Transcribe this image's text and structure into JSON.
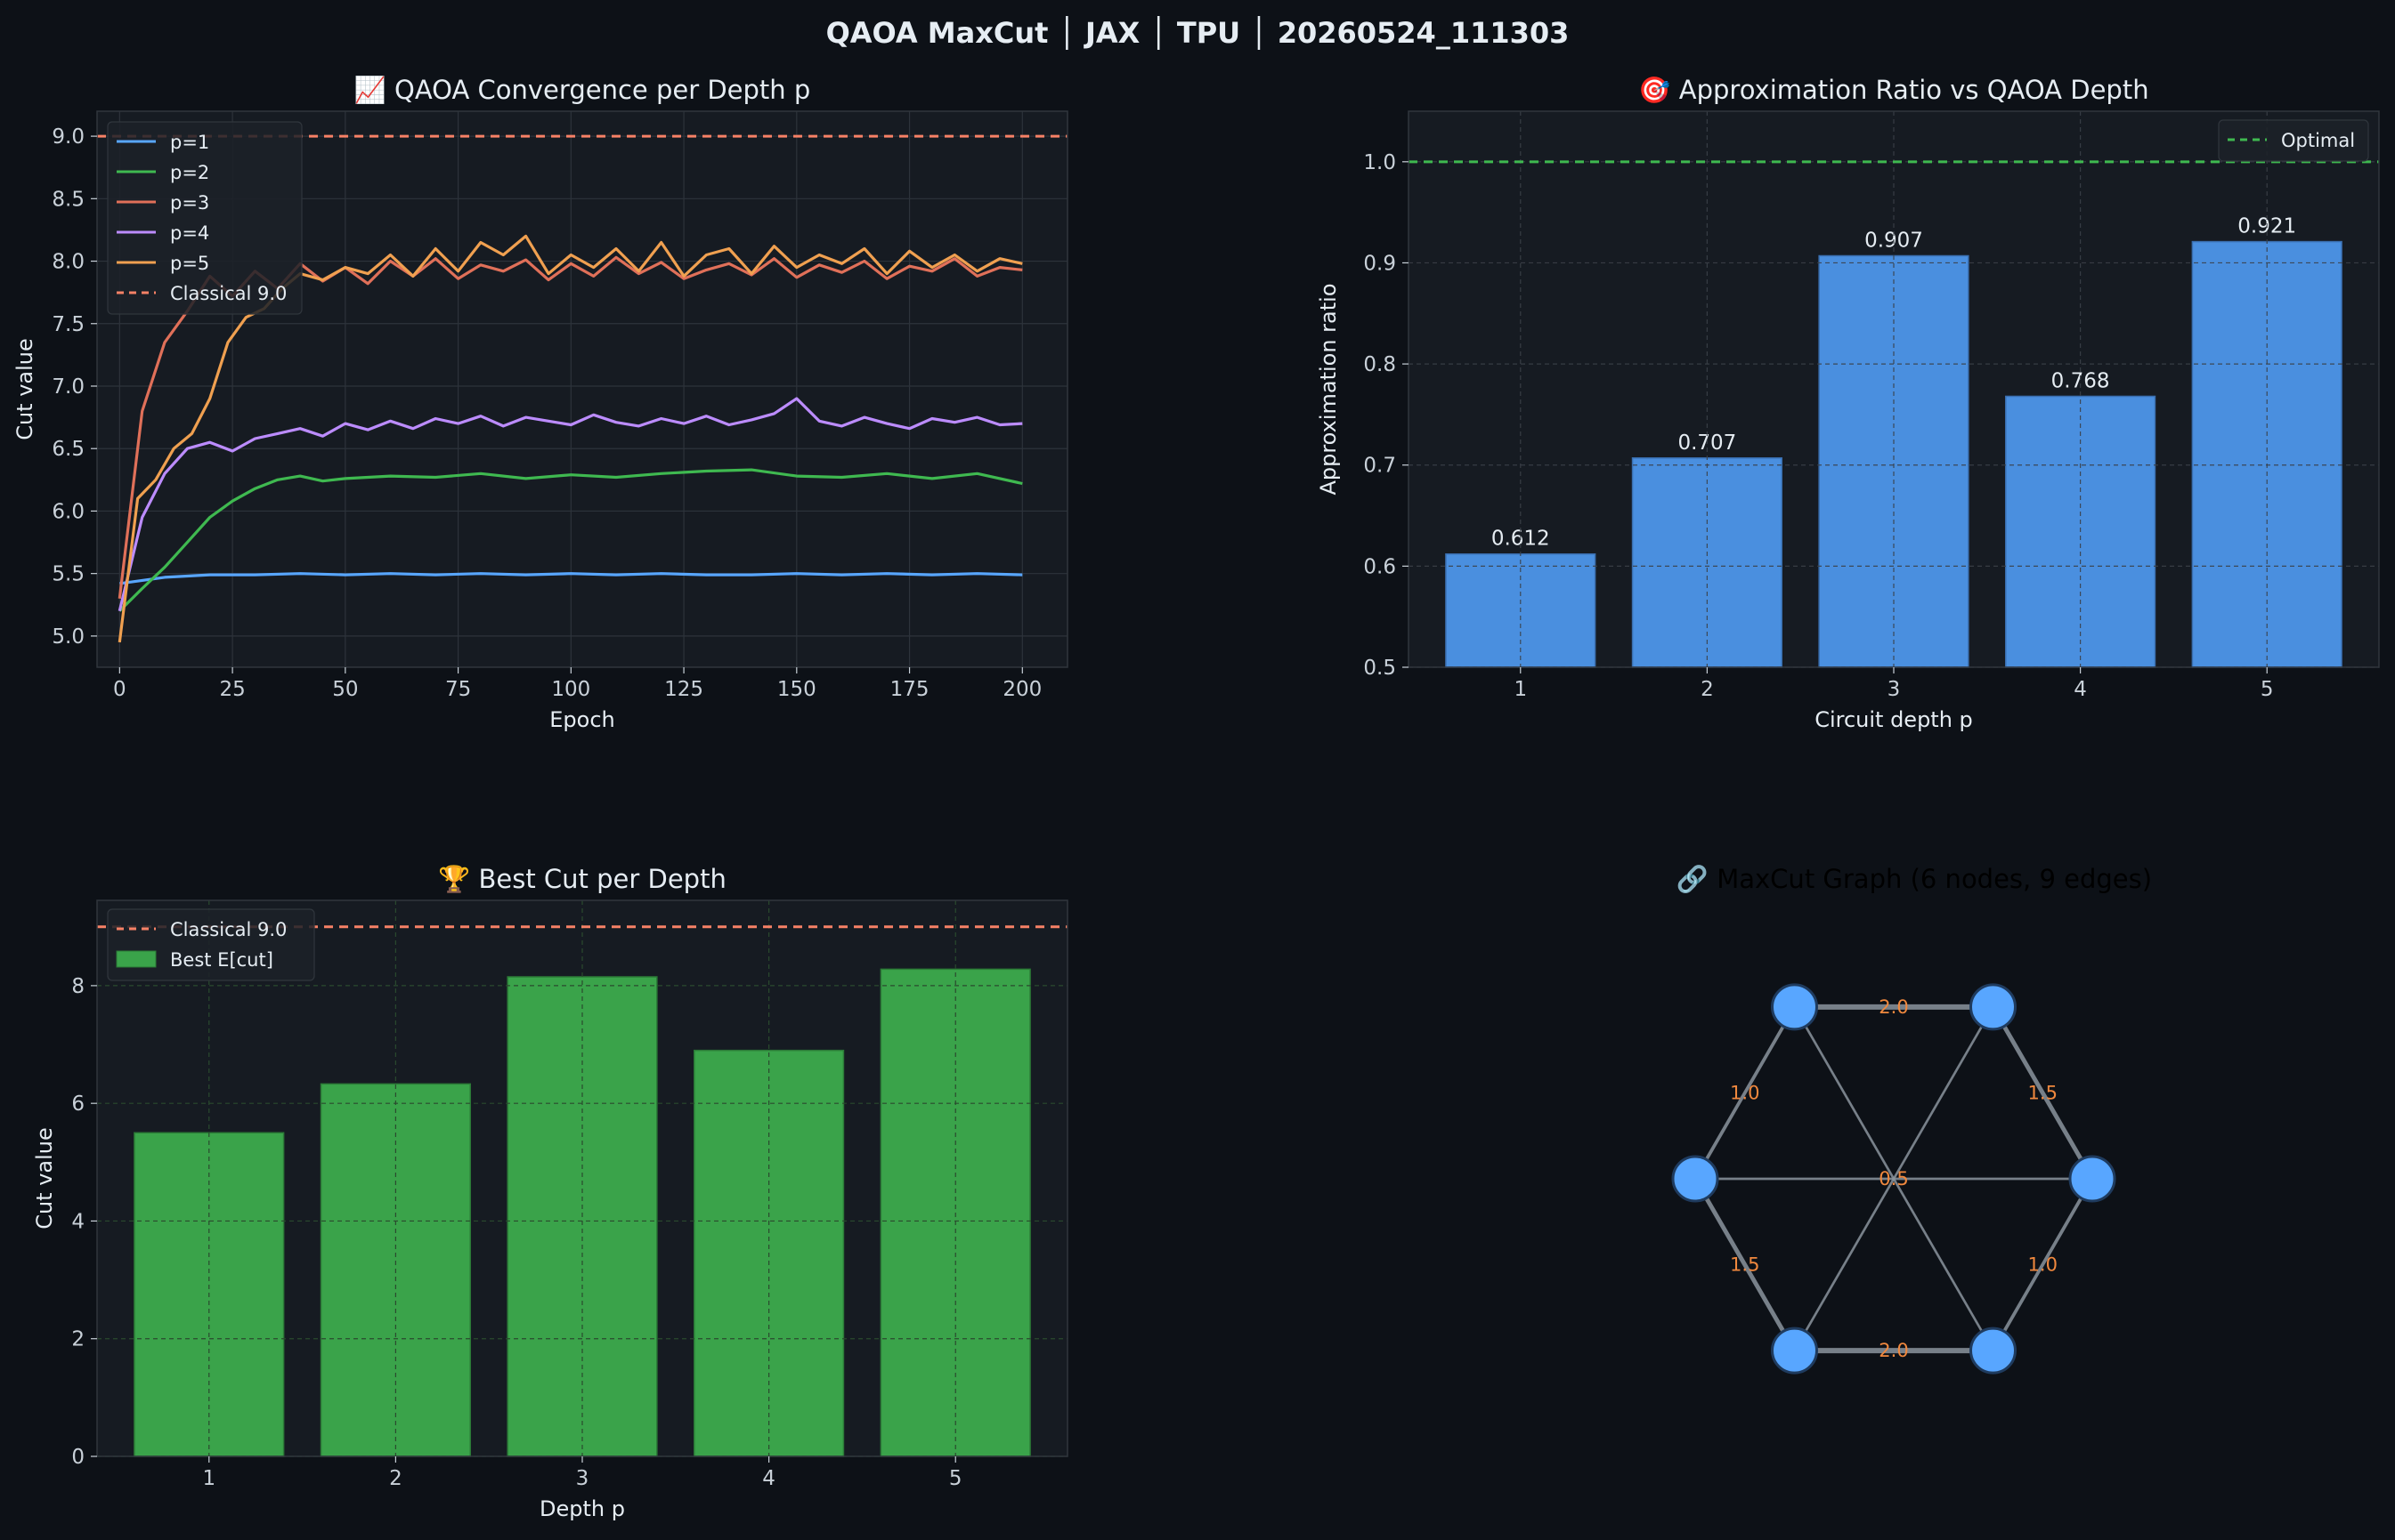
{
  "figure": {
    "suptitle": "QAOA MaxCut │ JAX │ TPU │ 20260524_111303"
  },
  "colors": {
    "background": "#0d1117",
    "panel": "#161b22",
    "spine": "#30363d",
    "grid": "#2d333b",
    "text": "#e6edf3",
    "tick": "#c9d1d9",
    "classical": "#f78166",
    "optimal": "#3fb950",
    "bar_ratio": "#4a8fdf",
    "bar_cut": "#3aa34a",
    "node": "#58a6ff",
    "edge": "#8b949e",
    "edge_label": "#f0883e",
    "series": [
      "#58a6ff",
      "#3fb950",
      "#e07059",
      "#bc8cff",
      "#f0a050"
    ]
  },
  "chart_data": [
    {
      "type": "line",
      "title": "📈  QAOA Convergence per Depth p",
      "xlabel": "Epoch",
      "ylabel": "Cut value",
      "xlim": [
        -5,
        210
      ],
      "ylim": [
        4.75,
        9.2
      ],
      "xticks": [
        0,
        25,
        50,
        75,
        100,
        125,
        150,
        175,
        200
      ],
      "yticks": [
        5.0,
        5.5,
        6.0,
        6.5,
        7.0,
        7.5,
        8.0,
        8.5,
        9.0
      ],
      "grid": true,
      "legend": "top-left",
      "series": [
        {
          "name": "p=1",
          "x": [
            0,
            10,
            20,
            30,
            40,
            50,
            60,
            70,
            80,
            90,
            100,
            110,
            120,
            130,
            140,
            150,
            160,
            170,
            180,
            190,
            200
          ],
          "values": [
            5.42,
            5.47,
            5.49,
            5.49,
            5.5,
            5.49,
            5.5,
            5.49,
            5.5,
            5.49,
            5.5,
            5.49,
            5.5,
            5.49,
            5.49,
            5.5,
            5.49,
            5.5,
            5.49,
            5.5,
            5.49
          ]
        },
        {
          "name": "p=2",
          "x": [
            0,
            5,
            10,
            15,
            20,
            25,
            30,
            35,
            40,
            45,
            50,
            60,
            70,
            80,
            90,
            100,
            110,
            120,
            130,
            140,
            150,
            160,
            170,
            180,
            190,
            200
          ],
          "values": [
            5.2,
            5.38,
            5.55,
            5.75,
            5.95,
            6.08,
            6.18,
            6.25,
            6.28,
            6.24,
            6.26,
            6.28,
            6.27,
            6.3,
            6.26,
            6.29,
            6.27,
            6.3,
            6.32,
            6.33,
            6.28,
            6.27,
            6.3,
            6.26,
            6.3,
            6.22
          ]
        },
        {
          "name": "p=3",
          "x": [
            0,
            5,
            10,
            15,
            20,
            25,
            30,
            35,
            40,
            45,
            50,
            55,
            60,
            65,
            70,
            75,
            80,
            85,
            90,
            95,
            100,
            105,
            110,
            115,
            120,
            125,
            130,
            135,
            140,
            145,
            150,
            155,
            160,
            165,
            170,
            175,
            180,
            185,
            190,
            195,
            200
          ],
          "values": [
            5.3,
            6.8,
            7.35,
            7.6,
            7.88,
            7.72,
            7.92,
            7.78,
            7.98,
            7.84,
            7.95,
            7.82,
            8.0,
            7.88,
            8.02,
            7.86,
            7.97,
            7.92,
            8.01,
            7.85,
            7.98,
            7.88,
            8.03,
            7.9,
            7.99,
            7.86,
            7.93,
            7.98,
            7.89,
            8.02,
            7.87,
            7.97,
            7.91,
            8.0,
            7.86,
            7.96,
            7.92,
            8.02,
            7.88,
            7.95,
            7.93
          ]
        },
        {
          "name": "p=4",
          "x": [
            0,
            5,
            10,
            15,
            20,
            25,
            30,
            35,
            40,
            45,
            50,
            55,
            60,
            65,
            70,
            75,
            80,
            85,
            90,
            95,
            100,
            105,
            110,
            115,
            120,
            125,
            130,
            135,
            140,
            145,
            150,
            155,
            160,
            165,
            170,
            175,
            180,
            185,
            190,
            195,
            200
          ],
          "values": [
            5.2,
            5.95,
            6.3,
            6.5,
            6.55,
            6.48,
            6.58,
            6.62,
            6.66,
            6.6,
            6.7,
            6.65,
            6.72,
            6.66,
            6.74,
            6.7,
            6.76,
            6.68,
            6.75,
            6.72,
            6.69,
            6.77,
            6.71,
            6.68,
            6.74,
            6.7,
            6.76,
            6.69,
            6.73,
            6.78,
            6.9,
            6.72,
            6.68,
            6.75,
            6.7,
            6.66,
            6.74,
            6.71,
            6.75,
            6.69,
            6.7
          ]
        },
        {
          "name": "p=5",
          "x": [
            0,
            4,
            8,
            12,
            16,
            20,
            24,
            28,
            32,
            36,
            40,
            45,
            50,
            55,
            60,
            65,
            70,
            75,
            80,
            85,
            90,
            95,
            100,
            105,
            110,
            115,
            120,
            125,
            130,
            135,
            140,
            145,
            150,
            155,
            160,
            165,
            170,
            175,
            180,
            185,
            190,
            195,
            200
          ],
          "values": [
            4.95,
            6.1,
            6.25,
            6.5,
            6.62,
            6.9,
            7.35,
            7.55,
            7.62,
            7.78,
            7.9,
            7.85,
            7.95,
            7.9,
            8.05,
            7.88,
            8.1,
            7.92,
            8.15,
            8.05,
            8.2,
            7.9,
            8.05,
            7.95,
            8.1,
            7.92,
            8.15,
            7.88,
            8.05,
            8.1,
            7.9,
            8.12,
            7.95,
            8.05,
            7.98,
            8.1,
            7.9,
            8.08,
            7.95,
            8.05,
            7.92,
            8.02,
            7.98
          ]
        }
      ],
      "reference": {
        "name": "Classical 9.0",
        "value": 9.0
      }
    },
    {
      "type": "bar",
      "title": "🎯  Approximation Ratio vs QAOA Depth",
      "xlabel": "Circuit depth p",
      "ylabel": "Approximation ratio",
      "categories": [
        "1",
        "2",
        "3",
        "4",
        "5"
      ],
      "values": [
        0.612,
        0.707,
        0.907,
        0.768,
        0.921
      ],
      "value_labels": [
        "0.612",
        "0.707",
        "0.907",
        "0.768",
        "0.921"
      ],
      "ylim": [
        0.5,
        1.05
      ],
      "yticks": [
        0.5,
        0.6,
        0.7,
        0.8,
        0.9,
        1.0
      ],
      "grid": true,
      "legend": "top-right",
      "reference": {
        "name": "Optimal",
        "value": 1.0
      }
    },
    {
      "type": "bar",
      "title": "🏆  Best Cut per Depth",
      "xlabel": "Depth p",
      "ylabel": "Cut value",
      "categories": [
        "1",
        "2",
        "3",
        "4",
        "5"
      ],
      "series": [
        {
          "name": "Best E[cut]",
          "values": [
            5.5,
            6.33,
            8.15,
            6.9,
            8.28
          ]
        }
      ],
      "ylim": [
        0,
        9.45
      ],
      "yticks": [
        0,
        2,
        4,
        6,
        8
      ],
      "grid": true,
      "legend": "top-left",
      "reference": {
        "name": "Classical 9.0",
        "value": 9.0
      }
    },
    {
      "type": "graph",
      "title": "🔗  MaxCut Graph (6 nodes, 9 edges)",
      "nodes": 6,
      "edges": [
        {
          "from": 0,
          "to": 1,
          "weight": "2.0"
        },
        {
          "from": 1,
          "to": 2,
          "weight": "1.5"
        },
        {
          "from": 2,
          "to": 3,
          "weight": "1.0"
        },
        {
          "from": 3,
          "to": 4,
          "weight": "2.0"
        },
        {
          "from": 4,
          "to": 5,
          "weight": "1.5"
        },
        {
          "from": 5,
          "to": 0,
          "weight": "1.0"
        },
        {
          "from": 0,
          "to": 3,
          "weight": "0.5"
        },
        {
          "from": 1,
          "to": 4,
          "weight": "0.5"
        },
        {
          "from": 2,
          "to": 5,
          "weight": "0.5"
        }
      ]
    }
  ]
}
